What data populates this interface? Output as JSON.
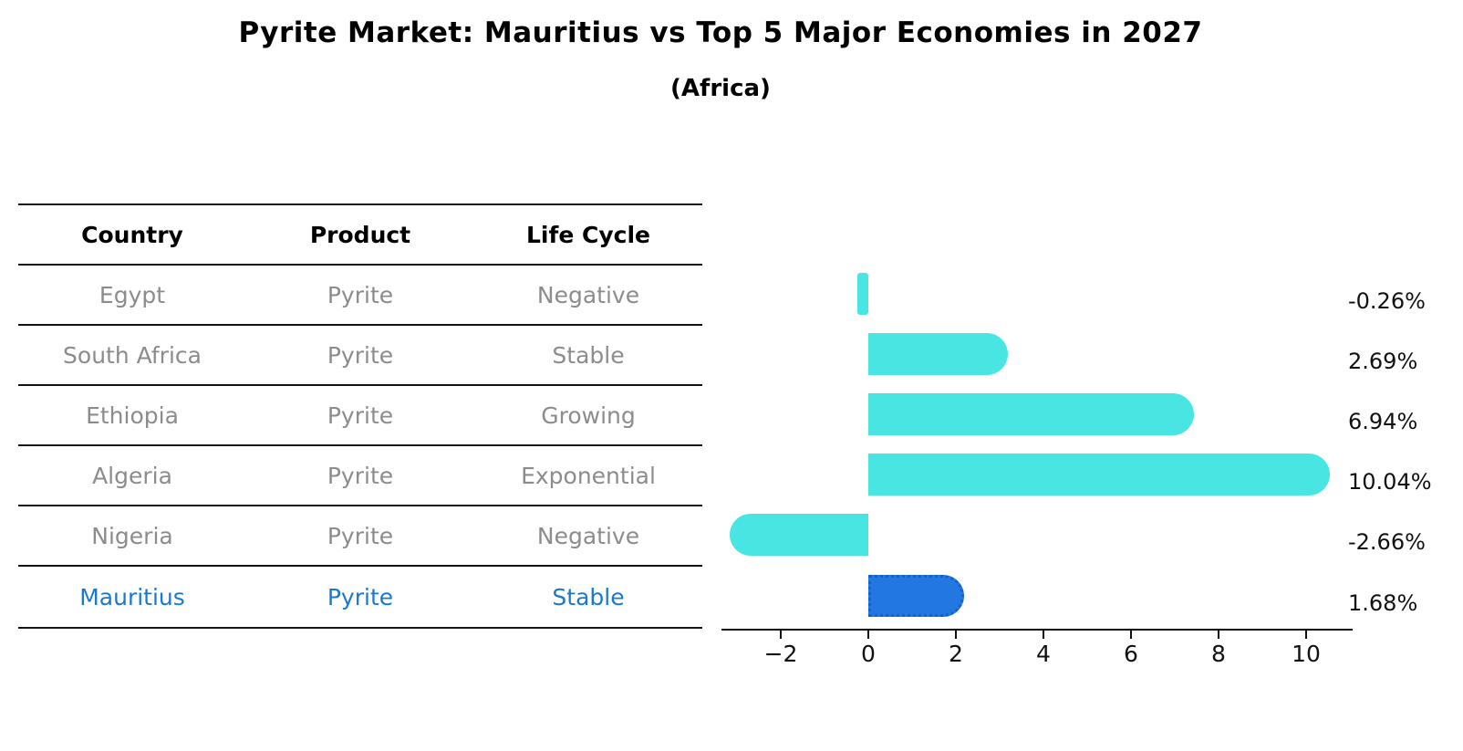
{
  "title": "Pyrite Market: Mauritius vs Top 5 Major Economies in 2027",
  "subtitle": "(Africa)",
  "table": {
    "headers": [
      "Country",
      "Product",
      "Life Cycle"
    ],
    "rows": [
      {
        "country": "Egypt",
        "product": "Pyrite",
        "life_cycle": "Negative",
        "highlight": false
      },
      {
        "country": "South Africa",
        "product": "Pyrite",
        "life_cycle": "Stable",
        "highlight": false
      },
      {
        "country": "Ethiopia",
        "product": "Pyrite",
        "life_cycle": "Growing",
        "highlight": false
      },
      {
        "country": "Algeria",
        "product": "Pyrite",
        "life_cycle": "Exponential",
        "highlight": false
      },
      {
        "country": "Nigeria",
        "product": "Pyrite",
        "life_cycle": "Negative",
        "highlight": false
      },
      {
        "country": "Mauritius",
        "product": "Pyrite",
        "life_cycle": "Stable",
        "highlight": true
      }
    ]
  },
  "chart_data": {
    "type": "bar",
    "orientation": "horizontal",
    "title": "Pyrite Market: Mauritius vs Top 5 Major Economies in 2027 (Africa)",
    "categories": [
      "Egypt",
      "South Africa",
      "Ethiopia",
      "Algeria",
      "Nigeria",
      "Mauritius"
    ],
    "values": [
      -0.26,
      2.69,
      6.94,
      10.04,
      -2.66,
      1.68
    ],
    "value_labels": [
      "-0.26%",
      "2.69%",
      "6.94%",
      "10.04%",
      "-2.66%",
      "1.68%"
    ],
    "highlight_index": 5,
    "x_ticks": [
      -2,
      0,
      2,
      4,
      6,
      8,
      10
    ],
    "x_tick_labels": [
      "−2",
      "0",
      "2",
      "4",
      "6",
      "8",
      "10"
    ],
    "xlim": [
      -3.4,
      11.0
    ],
    "grid": false,
    "legend": false,
    "bar_color": "#48e5e3",
    "highlight_bar_color": "#2278e0",
    "highlight_border_color": "#1461c8",
    "highlight_text_color": "#1b78d0",
    "row_text_color": "#8c8c8c"
  }
}
